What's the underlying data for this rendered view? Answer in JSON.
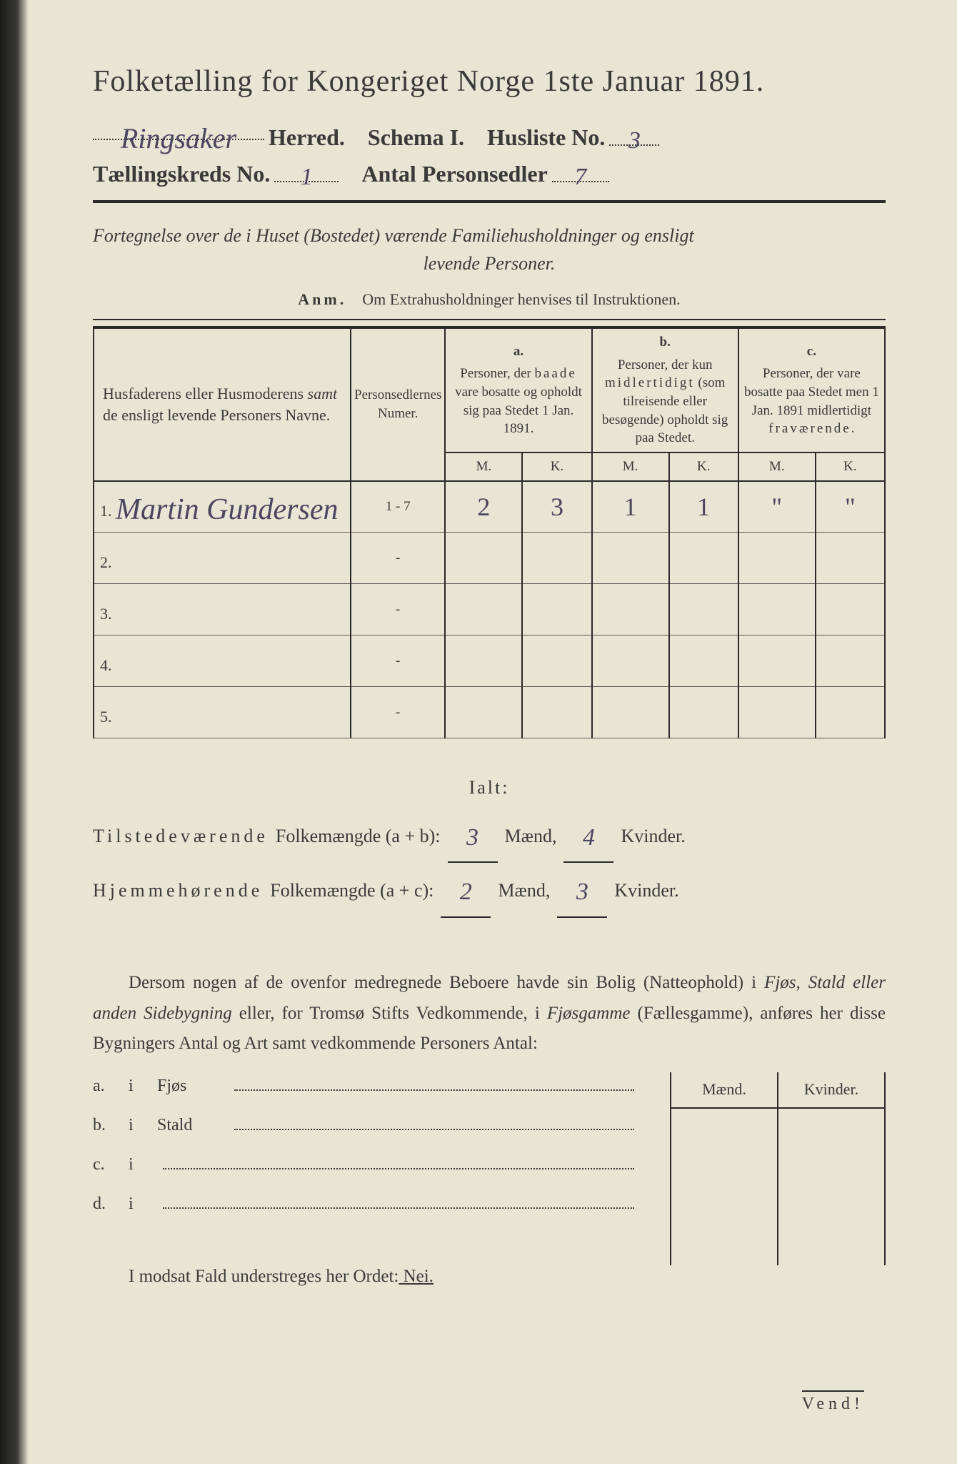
{
  "title": "Folketælling for Kongeriget Norge 1ste Januar 1891.",
  "header": {
    "herred_value": "Ringsaker",
    "herred_label": "Herred.",
    "schema_label": "Schema I.",
    "husliste_label": "Husliste No.",
    "husliste_value": "3",
    "kreds_label": "Tællingskreds No.",
    "kreds_value": "1",
    "antal_label": "Antal Personsedler",
    "antal_value": "7"
  },
  "subtitle_line1": "Fortegnelse over de i Huset (Bostedet) værende Familiehusholdninger og ensligt",
  "subtitle_line2": "levende Personer.",
  "anm_label": "Anm.",
  "anm_text": "Om Extrahusholdninger henvises til Instruktionen.",
  "table": {
    "col_name": "Husfaderens eller Husmoderens samt de ensligt levende Personers Navne.",
    "col_num": "Personsedlernes Numer.",
    "col_a_letter": "a.",
    "col_a": "Personer, der baade vare bosatte og opholdt sig paa Stedet 1 Jan. 1891.",
    "col_b_letter": "b.",
    "col_b": "Personer, der kun midlertidigt (som tilreisende eller besøgende) opholdt sig paa Stedet.",
    "col_c_letter": "c.",
    "col_c": "Personer, der vare bosatte paa Stedet men 1 Jan. 1891 midlertidigt fraværende.",
    "m": "M.",
    "k": "K.",
    "rows": [
      {
        "n": "1.",
        "name": "Martin Gundersen",
        "num": "1 - 7",
        "am": "2",
        "ak": "3",
        "bm": "1",
        "bk": "1",
        "cm": "\"",
        "ck": "\""
      },
      {
        "n": "2.",
        "name": "",
        "num": "-",
        "am": "",
        "ak": "",
        "bm": "",
        "bk": "",
        "cm": "",
        "ck": ""
      },
      {
        "n": "3.",
        "name": "",
        "num": "-",
        "am": "",
        "ak": "",
        "bm": "",
        "bk": "",
        "cm": "",
        "ck": ""
      },
      {
        "n": "4.",
        "name": "",
        "num": "-",
        "am": "",
        "ak": "",
        "bm": "",
        "bk": "",
        "cm": "",
        "ck": ""
      },
      {
        "n": "5.",
        "name": "",
        "num": "-",
        "am": "",
        "ak": "",
        "bm": "",
        "bk": "",
        "cm": "",
        "ck": ""
      }
    ]
  },
  "totals": {
    "ialt": "Ialt:",
    "line1_label": "Tilstedeværende",
    "line1_mid": "Folkemængde (a + b):",
    "line1_m": "3",
    "line1_k": "4",
    "line2_label": "Hjemmehørende",
    "line2_mid": "Folkemængde (a + c):",
    "line2_m": "2",
    "line2_k": "3",
    "maend": "Mænd,",
    "kvinder": "Kvinder."
  },
  "paragraph": "Dersom nogen af de ovenfor medregnede Beboere havde sin Bolig (Natteophold) i Fjøs, Stald eller anden Sidebygning eller, for Tromsø Stifts Vedkommende, i Fjøsgamme (Fællesgamme), anføres her disse Bygningers Antal og Art samt vedkommende Personers Antal:",
  "mk": {
    "m": "Mænd.",
    "k": "Kvinder."
  },
  "list": {
    "a": "a.",
    "b": "b.",
    "c": "c.",
    "d": "d.",
    "i": "i",
    "fjos": "Fjøs",
    "stald": "Stald"
  },
  "modsat_pre": "I modsat Fald understreges her Ordet:",
  "modsat_nei": " Nei.",
  "vend": "Vend!",
  "colors": {
    "paper": "#e8e5d4",
    "ink": "#3a3a38",
    "rule": "#2a2a28",
    "handwriting": "#4a4560"
  }
}
